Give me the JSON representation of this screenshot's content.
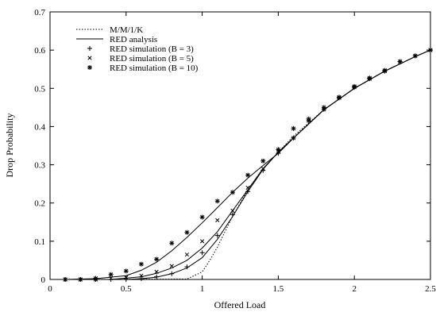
{
  "chart_data": {
    "type": "line",
    "xlabel": "Offered Load",
    "ylabel": "Drop Probability",
    "xlim": [
      0,
      2.5
    ],
    "ylim": [
      0,
      0.7
    ],
    "xticks": [
      0,
      0.5,
      1,
      1.5,
      2,
      2.5
    ],
    "xtick_labels": [
      "0",
      "0.5",
      "1",
      "1.5",
      "2",
      "2.5"
    ],
    "yticks": [
      0,
      0.1,
      0.2,
      0.3,
      0.4,
      0.5,
      0.6,
      0.7
    ],
    "ytick_labels": [
      "0",
      "0.1",
      "0.2",
      "0.3",
      "0.4",
      "0.5",
      "0.6",
      "0.7"
    ],
    "grid": false,
    "legend_position": "top-left",
    "series": [
      {
        "name": "M/M/1/K",
        "kind": "line",
        "style": "dotted",
        "x": [
          0.1,
          0.9,
          1.0,
          1.05,
          1.1,
          1.15,
          1.2,
          1.3,
          1.4,
          1.5,
          1.6,
          1.8,
          2.0,
          2.2,
          2.4,
          2.5
        ],
        "y": [
          0,
          0.001,
          0.02,
          0.05,
          0.085,
          0.125,
          0.165,
          0.235,
          0.29,
          0.333,
          0.375,
          0.444,
          0.5,
          0.545,
          0.583,
          0.6
        ]
      },
      {
        "name": "RED analysis",
        "kind": "line",
        "style": "solid",
        "curves": [
          {
            "x": [
              0.1,
              0.3,
              0.5,
              0.6,
              0.7,
              0.8,
              0.9,
              1.0,
              1.1,
              1.2,
              1.3,
              1.4,
              1.5,
              1.6,
              1.8,
              2.0,
              2.2,
              2.4,
              2.5
            ],
            "y": [
              0,
              0.002,
              0.01,
              0.024,
              0.045,
              0.075,
              0.11,
              0.148,
              0.188,
              0.228,
              0.265,
              0.298,
              0.33,
              0.37,
              0.444,
              0.5,
              0.545,
              0.583,
              0.6
            ]
          },
          {
            "x": [
              0.1,
              0.4,
              0.6,
              0.7,
              0.8,
              0.9,
              1.0,
              1.1,
              1.2,
              1.3,
              1.4,
              1.5,
              1.6,
              1.8,
              2.0,
              2.2,
              2.4,
              2.5
            ],
            "y": [
              0,
              0.0,
              0.007,
              0.016,
              0.03,
              0.05,
              0.082,
              0.125,
              0.18,
              0.235,
              0.29,
              0.333,
              0.37,
              0.444,
              0.5,
              0.545,
              0.583,
              0.6
            ]
          },
          {
            "x": [
              0.1,
              0.5,
              0.6,
              0.7,
              0.8,
              0.9,
              1.0,
              1.1,
              1.2,
              1.3,
              1.4,
              1.5,
              1.6,
              1.8,
              2.0,
              2.2,
              2.4,
              2.5
            ],
            "y": [
              0,
              0.0,
              0.002,
              0.006,
              0.015,
              0.03,
              0.057,
              0.105,
              0.165,
              0.23,
              0.288,
              0.333,
              0.37,
              0.444,
              0.5,
              0.545,
              0.583,
              0.6
            ]
          }
        ]
      },
      {
        "name": "RED simulation (B = 3)",
        "kind": "marker",
        "marker": "plus",
        "x": [
          0.1,
          0.2,
          0.3,
          0.4,
          0.5,
          0.6,
          0.7,
          0.8,
          0.9,
          1.0,
          1.1,
          1.2,
          1.3,
          1.4,
          1.5,
          1.6,
          1.7,
          1.8,
          1.9,
          2.0,
          2.1,
          2.2,
          2.3,
          2.4,
          2.5
        ],
        "y": [
          0,
          0,
          0,
          0.0,
          0.0,
          0.002,
          0.007,
          0.015,
          0.033,
          0.07,
          0.115,
          0.17,
          0.23,
          0.285,
          0.33,
          0.37,
          0.415,
          0.445,
          0.477,
          0.505,
          0.527,
          0.547,
          0.57,
          0.585,
          0.6
        ]
      },
      {
        "name": "RED simulation (B = 5)",
        "kind": "marker",
        "marker": "cross",
        "x": [
          0.1,
          0.2,
          0.3,
          0.4,
          0.5,
          0.6,
          0.7,
          0.8,
          0.9,
          1.0,
          1.1,
          1.2,
          1.3,
          1.4,
          1.5,
          1.6,
          1.7,
          1.8,
          1.9,
          2.0,
          2.1,
          2.2,
          2.3,
          2.4,
          2.5
        ],
        "y": [
          0,
          0,
          0,
          0.003,
          0.005,
          0.01,
          0.02,
          0.035,
          0.065,
          0.1,
          0.155,
          0.18,
          0.24,
          0.29,
          0.335,
          0.37,
          0.415,
          0.445,
          0.477,
          0.505,
          0.527,
          0.547,
          0.57,
          0.585,
          0.6
        ]
      },
      {
        "name": "RED simulation (B = 10)",
        "kind": "marker",
        "marker": "star",
        "x": [
          0.1,
          0.2,
          0.3,
          0.4,
          0.5,
          0.6,
          0.7,
          0.8,
          0.9,
          1.0,
          1.1,
          1.2,
          1.3,
          1.4,
          1.5,
          1.6,
          1.7,
          1.8,
          1.9,
          2.0,
          2.1,
          2.2,
          2.3,
          2.4,
          2.5
        ],
        "y": [
          0,
          0,
          0.003,
          0.013,
          0.022,
          0.04,
          0.053,
          0.095,
          0.123,
          0.163,
          0.205,
          0.228,
          0.273,
          0.31,
          0.34,
          0.395,
          0.42,
          0.45,
          0.475,
          0.503,
          0.525,
          0.545,
          0.57,
          0.585,
          0.6
        ]
      }
    ]
  }
}
